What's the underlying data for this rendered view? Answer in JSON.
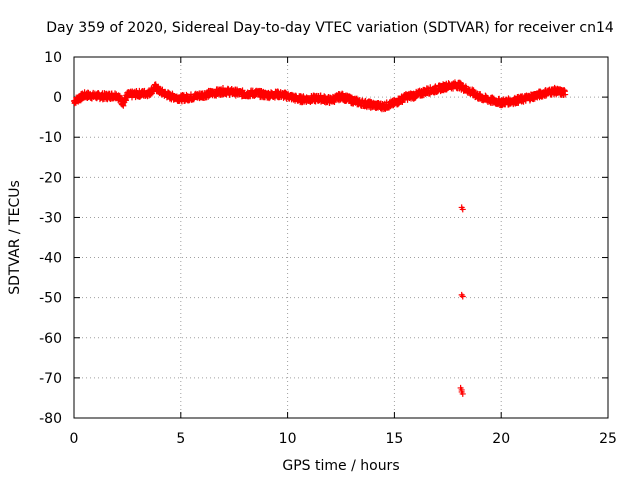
{
  "chart_data": {
    "type": "scatter",
    "title": "Day 359 of 2020, Sidereal Day-to-day VTEC variation (SDTVAR) for receiver cn14",
    "xlabel": "GPS time / hours",
    "ylabel": "SDTVAR / TECUs",
    "xlim": [
      0,
      25
    ],
    "ylim": [
      -80,
      10
    ],
    "xticks": [
      "0",
      "5",
      "10",
      "15",
      "20",
      "25"
    ],
    "yticks": [
      "10",
      "0",
      "-10",
      "-20",
      "-30",
      "-40",
      "-50",
      "-60",
      "-70",
      "-80"
    ],
    "grid": true,
    "marker_color": "#ff0000",
    "series": [
      {
        "name": "cn14",
        "trend": {
          "x": [
            0.0,
            0.5,
            1.0,
            1.5,
            2.0,
            2.3,
            2.5,
            3.0,
            3.5,
            3.8,
            4.0,
            4.5,
            5.0,
            5.5,
            6.0,
            6.5,
            7.0,
            7.5,
            8.0,
            8.5,
            9.0,
            9.5,
            10.0,
            10.5,
            11.0,
            11.5,
            12.0,
            12.5,
            13.0,
            13.5,
            14.0,
            14.5,
            15.0,
            15.5,
            16.0,
            16.5,
            17.0,
            17.5,
            18.0,
            18.5,
            19.0,
            19.5,
            20.0,
            20.5,
            21.0,
            21.5,
            22.0,
            22.5,
            23.0
          ],
          "y": [
            -1.0,
            0.5,
            0.3,
            0.2,
            0.5,
            -1.5,
            0.5,
            0.8,
            1.0,
            2.5,
            1.5,
            0.2,
            -0.3,
            0.0,
            0.5,
            1.0,
            1.5,
            1.2,
            0.8,
            1.0,
            0.5,
            0.7,
            0.3,
            -0.5,
            -0.5,
            -0.3,
            -0.8,
            0.2,
            -0.8,
            -1.5,
            -2.0,
            -2.3,
            -1.5,
            0.0,
            0.5,
            1.5,
            2.0,
            2.8,
            3.0,
            1.5,
            0.0,
            -0.8,
            -1.3,
            -1.0,
            -0.5,
            0.2,
            1.0,
            1.5,
            1.0
          ]
        },
        "outliers": {
          "x": [
            18.15,
            18.2,
            18.15,
            18.2,
            18.1,
            18.15,
            18.15,
            18.2
          ],
          "y": [
            -27.5,
            -28.0,
            -49.3,
            -49.7,
            -72.5,
            -73.0,
            -73.5,
            -74.0
          ]
        }
      }
    ]
  }
}
